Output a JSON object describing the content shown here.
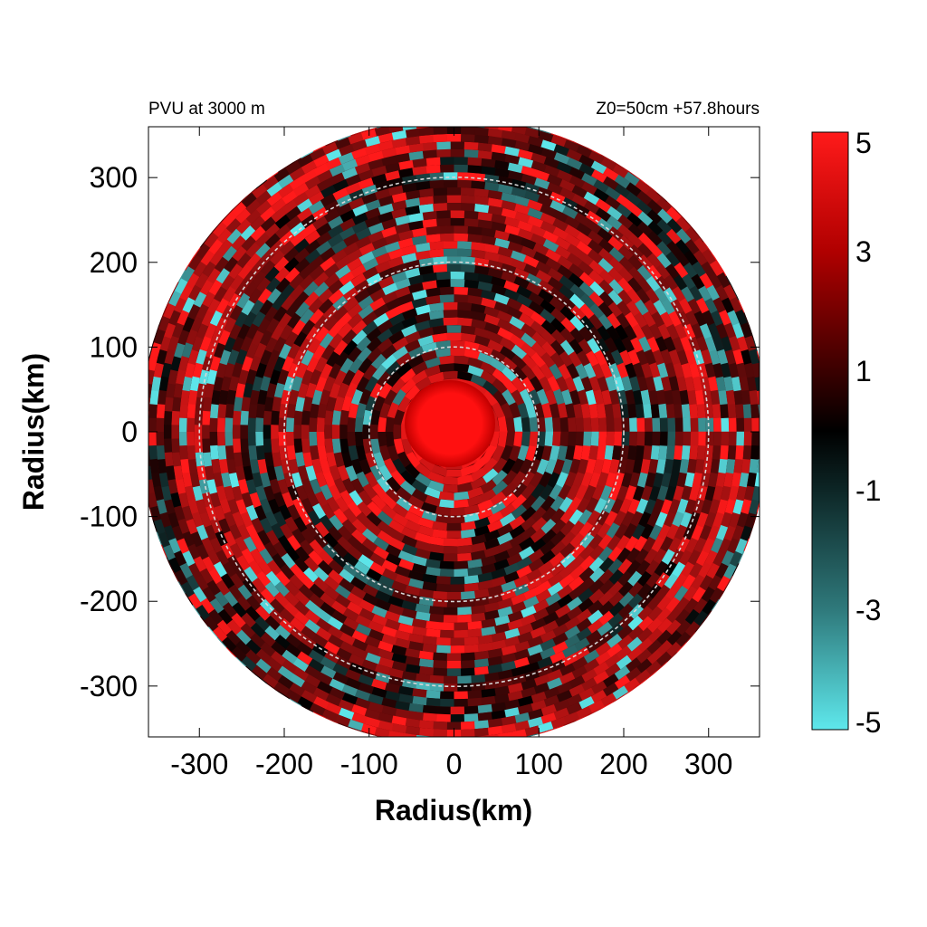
{
  "chart_data": {
    "type": "heatmap",
    "title_left": "PVU at  3000 m",
    "title_right": "Z0=50cm  +57.8hours",
    "xlabel": "Radius(km)",
    "ylabel": "Radius(km)",
    "xlim": [
      -360,
      360
    ],
    "ylim": [
      -360,
      360
    ],
    "x_ticks": [
      -300,
      -200,
      -100,
      0,
      100,
      200,
      300
    ],
    "y_ticks": [
      300,
      200,
      100,
      0,
      -100,
      -200,
      -300
    ],
    "range_rings_km": [
      100,
      200,
      300
    ],
    "domain_radius_km": 370,
    "colorbar": {
      "min": -5,
      "max": 5,
      "ticks": [
        5,
        3,
        1,
        -1,
        -3,
        -5
      ],
      "colors": {
        "high": "#ff1a1a",
        "zero": "#000000",
        "low": "#5ee8ec"
      }
    }
  }
}
